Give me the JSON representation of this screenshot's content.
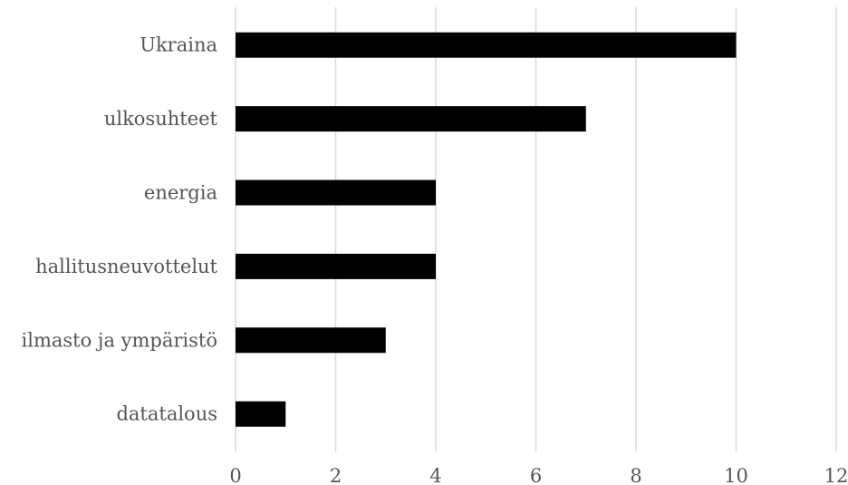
{
  "chart_data": {
    "type": "bar",
    "orientation": "horizontal",
    "categories": [
      "Ukraina",
      "ulkosuhteet",
      "energia",
      "hallitusneuvottelut",
      "ilmasto ja ympäristö",
      "datatalous"
    ],
    "values": [
      10,
      7,
      4,
      4,
      3,
      1
    ],
    "title": "",
    "xlabel": "",
    "ylabel": "",
    "xlim": [
      0,
      12
    ],
    "xticks": [
      "0",
      "2",
      "4",
      "6",
      "8",
      "10",
      "12"
    ],
    "grid": "vertical",
    "legend": "none",
    "colors": {
      "bar": "#000000",
      "grid": "#d9d9d9",
      "text": "#555555"
    }
  }
}
